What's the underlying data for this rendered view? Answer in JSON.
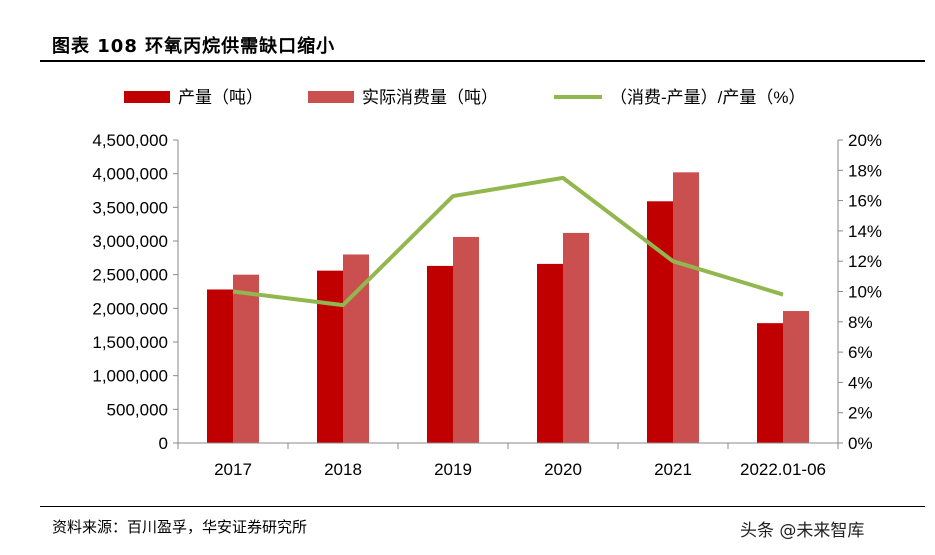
{
  "header": {
    "title": "图表 108  环氧丙烷供需缺口缩小"
  },
  "footer": {
    "source": "资料来源：百川盈孚，华安证券研究所",
    "watermark": "头条 @未来智库"
  },
  "colors": {
    "production": "#C00000",
    "consumption": "#C9504F",
    "gap": "#92B74F",
    "axis": "#888888"
  },
  "chart_data": {
    "type": "bar",
    "categories": [
      "2017",
      "2018",
      "2019",
      "2020",
      "2021",
      "2022.01-06"
    ],
    "series": [
      {
        "name": "产量（吨）",
        "type": "bar",
        "axis": "left",
        "values": [
          2280000,
          2560000,
          2630000,
          2660000,
          3590000,
          1780000
        ]
      },
      {
        "name": "实际消费量（吨）",
        "type": "bar",
        "axis": "left",
        "values": [
          2500000,
          2800000,
          3060000,
          3120000,
          4020000,
          1960000
        ]
      },
      {
        "name": "（消费-产量）/产量（%）",
        "type": "line",
        "axis": "right",
        "values": [
          10.0,
          9.1,
          16.3,
          17.5,
          12.0,
          9.8
        ]
      }
    ],
    "ylim_left": [
      0,
      4500000
    ],
    "ylim_right": [
      0,
      20
    ],
    "left_ticks": [
      "0",
      "500,000",
      "1,000,000",
      "1,500,000",
      "2,000,000",
      "2,500,000",
      "3,000,000",
      "3,500,000",
      "4,000,000",
      "4,500,000"
    ],
    "right_ticks": [
      "0%",
      "2%",
      "4%",
      "6%",
      "8%",
      "10%",
      "12%",
      "14%",
      "16%",
      "18%",
      "20%"
    ],
    "legend_position": "top",
    "grid": false
  }
}
